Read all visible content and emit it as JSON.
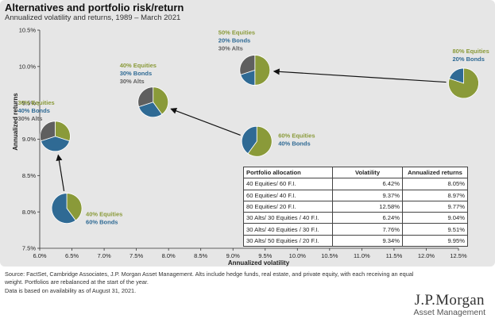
{
  "colors": {
    "equities": "#8a9a39",
    "bonds": "#2f6a94",
    "alts": "#5f5f5f"
  },
  "chart_data": {
    "type": "scatter",
    "title": "Alternatives and portfolio risk/return",
    "subtitle": "Annualized volatility and returns, 1989 – March 2021",
    "xlabel": "Annualized volatility",
    "ylabel": "Annualized returns",
    "xlim": [
      6.0,
      12.5
    ],
    "ylim": [
      7.5,
      10.5
    ],
    "xticks": [
      "6.0%",
      "6.5%",
      "7.0%",
      "7.5%",
      "8.0%",
      "8.5%",
      "9.0%",
      "9.5%",
      "10.0%",
      "10.5%",
      "11.0%",
      "11.5%",
      "12.0%",
      "12.5%"
    ],
    "yticks": [
      "7.5%",
      "8.0%",
      "8.5%",
      "9.0%",
      "9.5%",
      "10.0%",
      "10.5%"
    ],
    "points": [
      {
        "x": 6.42,
        "y": 8.05,
        "equities": 40,
        "bonds": 60,
        "alts": 0,
        "labels": [
          "40% Equities",
          "60% Bonds"
        ]
      },
      {
        "x": 9.37,
        "y": 8.97,
        "equities": 60,
        "bonds": 40,
        "alts": 0,
        "labels": [
          "60% Equities",
          "40% Bonds"
        ]
      },
      {
        "x": 12.58,
        "y": 9.77,
        "equities": 80,
        "bonds": 20,
        "alts": 0,
        "labels": [
          "80% Equities",
          "20% Bonds"
        ]
      },
      {
        "x": 6.24,
        "y": 9.04,
        "equities": 30,
        "bonds": 40,
        "alts": 30,
        "labels": [
          "30% Equities",
          "40% Bonds",
          "30% Alts"
        ]
      },
      {
        "x": 7.76,
        "y": 9.51,
        "equities": 40,
        "bonds": 30,
        "alts": 30,
        "labels": [
          "40% Equities",
          "30% Bonds",
          "30% Alts"
        ]
      },
      {
        "x": 9.34,
        "y": 9.95,
        "equities": 50,
        "bonds": 20,
        "alts": 30,
        "labels": [
          "50% Equities",
          "20% Bonds",
          "30% Alts"
        ]
      }
    ],
    "table": {
      "headers": [
        "Portfolio allocation",
        "Volatility",
        "Annualized returns"
      ],
      "rows": [
        [
          "40 Equities/ 60 F.I.",
          "6.42%",
          "8.05%"
        ],
        [
          "60 Equities/ 40 F.I.",
          "9.37%",
          "8.97%"
        ],
        [
          "80 Equities/ 20 F.I.",
          "12.58%",
          "9.77%"
        ],
        [
          "30 Alts/ 30 Equities / 40 F.I.",
          "6.24%",
          "9.04%"
        ],
        [
          "30 Alts/ 40 Equities / 30 F.I.",
          "7.76%",
          "9.51%"
        ],
        [
          "30 Alts/ 50 Equities / 20 F.I.",
          "9.34%",
          "9.95%"
        ]
      ]
    }
  },
  "footnote": {
    "source": "Source: FactSet, Cambridge Associates, J.P. Morgan Asset Management. Alts include hedge funds, real estate, and private equity, with each receiving an equal weight. Portfolios are rebalanced at the start of the year.",
    "availability": "Data is based on availability as of August 31, 2021."
  },
  "logo": {
    "main": "J.P.Morgan",
    "sub": "Asset Management"
  }
}
